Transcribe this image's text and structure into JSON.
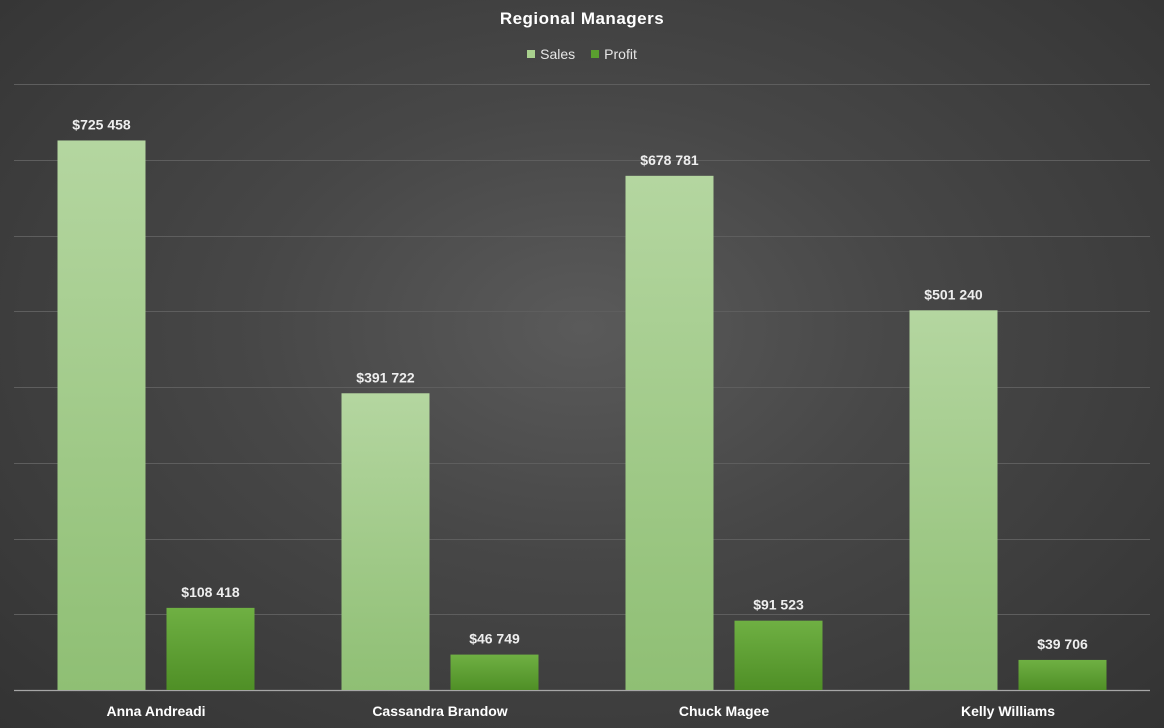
{
  "chart_data": {
    "type": "bar",
    "title": "Regional Managers",
    "categories": [
      "Anna Andreadi",
      "Cassandra Brandow",
      "Chuck Magee",
      "Kelly Williams"
    ],
    "series": [
      {
        "name": "Sales",
        "values": [
          725458,
          391722,
          678781,
          501240
        ],
        "labels": [
          "$725 458",
          "$391 722",
          "$678 781",
          "$501 240"
        ],
        "color": "#a9d18e"
      },
      {
        "name": "Profit",
        "values": [
          108418,
          46749,
          91523,
          39706
        ],
        "labels": [
          "$108 418",
          "$46 749",
          "$91 523",
          "$39 706"
        ],
        "color": "#5a9e2f"
      }
    ],
    "ylim": [
      0,
      800000
    ],
    "grid": true,
    "legend": "top-center",
    "xlabel": "",
    "ylabel": ""
  }
}
